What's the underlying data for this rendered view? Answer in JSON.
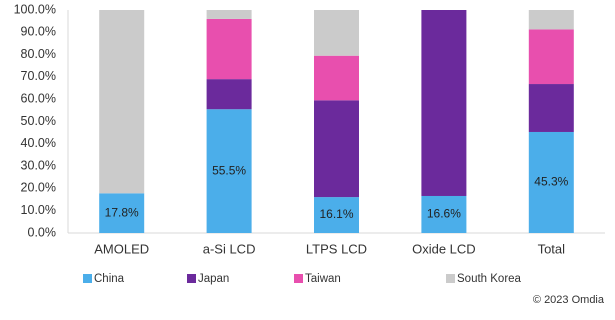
{
  "chart_data": {
    "type": "stacked_bar",
    "categories": [
      "AMOLED",
      "a-Si LCD",
      "LTPS  LCD",
      "Oxide LCD",
      "Total"
    ],
    "series": [
      {
        "name": "China",
        "color": "#4baeea",
        "values": [
          17.8,
          55.5,
          16.1,
          16.6,
          45.3
        ],
        "value_labels": [
          "17.8%",
          "55.5%",
          "16.1%",
          "16.6%",
          "45.3%"
        ]
      },
      {
        "name": "Japan",
        "color": "#6b2a9c",
        "values": [
          0,
          13.5,
          43.4,
          83.4,
          21.5
        ]
      },
      {
        "name": "Taiwan",
        "color": "#e84fae",
        "values": [
          0,
          27,
          20,
          0,
          24.5
        ]
      },
      {
        "name": "South Korea",
        "color": "#cbcbcb",
        "values": [
          82.2,
          4,
          20.5,
          0,
          8.7
        ]
      }
    ],
    "ylim": [
      0,
      100
    ],
    "yticks": [
      {
        "value": 0,
        "label": "0.0%"
      },
      {
        "value": 10,
        "label": "10.0%"
      },
      {
        "value": 20,
        "label": "20.0%"
      },
      {
        "value": 30,
        "label": "30.0%"
      },
      {
        "value": 40,
        "label": "40.0%"
      },
      {
        "value": 50,
        "label": "50.0%"
      },
      {
        "value": 60,
        "label": "60.0%"
      },
      {
        "value": 70,
        "label": "70.0%"
      },
      {
        "value": 80,
        "label": "80.0%"
      },
      {
        "value": 90,
        "label": "90.0%"
      },
      {
        "value": 100,
        "label": "100.0%"
      }
    ],
    "grid": false,
    "source": "© 2023 Omdia"
  }
}
